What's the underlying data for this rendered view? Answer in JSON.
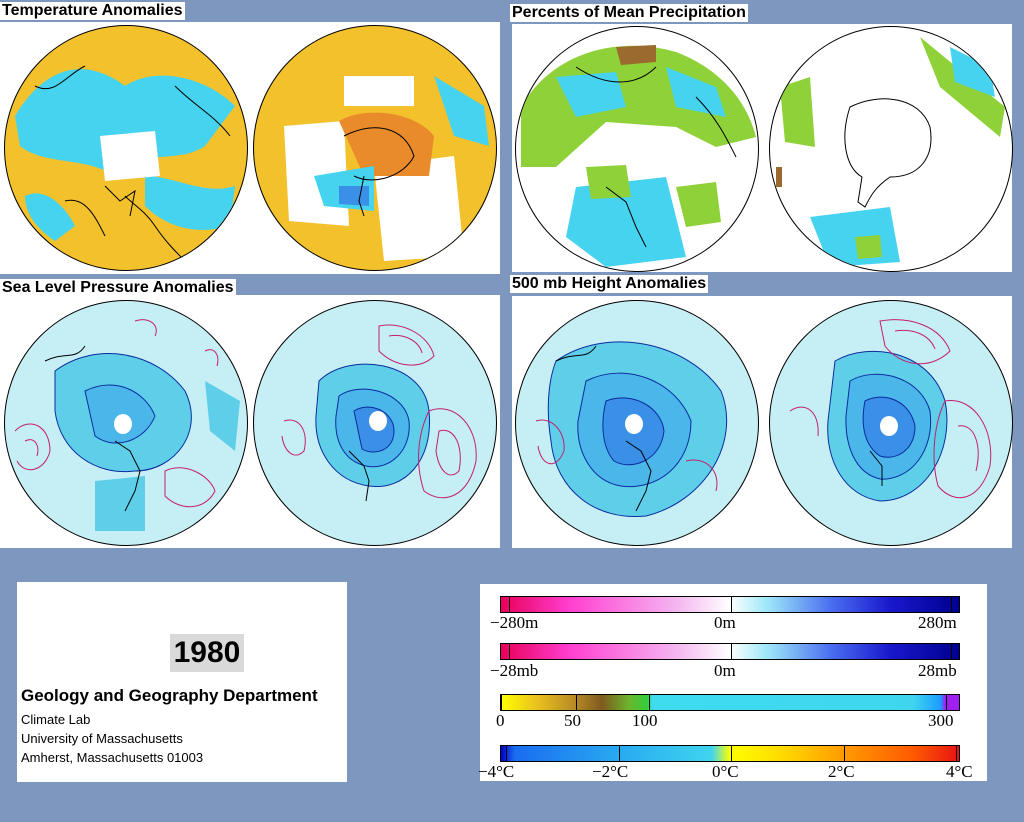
{
  "panels": {
    "temp": {
      "title": "Temperature Anomalies"
    },
    "precip": {
      "title": "Percents of Mean Precipitation"
    },
    "slp": {
      "title": "Sea Level Pressure Anomalies"
    },
    "height": {
      "title": "500 mb Height Anomalies"
    }
  },
  "info": {
    "year": "1980",
    "department": "Geology and Geography Department",
    "lines": [
      "Climate Lab",
      "University of Massachusetts",
      "Amherst, Massachusetts 01003"
    ]
  },
  "legend": {
    "height_scale": {
      "left": "−280m",
      "mid": "0m",
      "right": "280m"
    },
    "pressure_scale": {
      "left": "−28mb",
      "mid": "0m",
      "right": "28mb"
    },
    "precip_scale": {
      "l0": "0",
      "l50": "50",
      "l100": "100",
      "l300": "300"
    },
    "temp_scale": {
      "m4": "−4°C",
      "m2": "−2°C",
      "z": "0°C",
      "p2": "2°C",
      "p4": "4°C"
    }
  },
  "colors": {
    "background": "#7d97be",
    "warm_anomaly": "#f5c32a",
    "cool_anomaly": "#3fd5ef",
    "positive_contour": "#c41f6f",
    "negative_contour": "#0a2c9e",
    "pale_negative": "#c6eef5"
  }
}
